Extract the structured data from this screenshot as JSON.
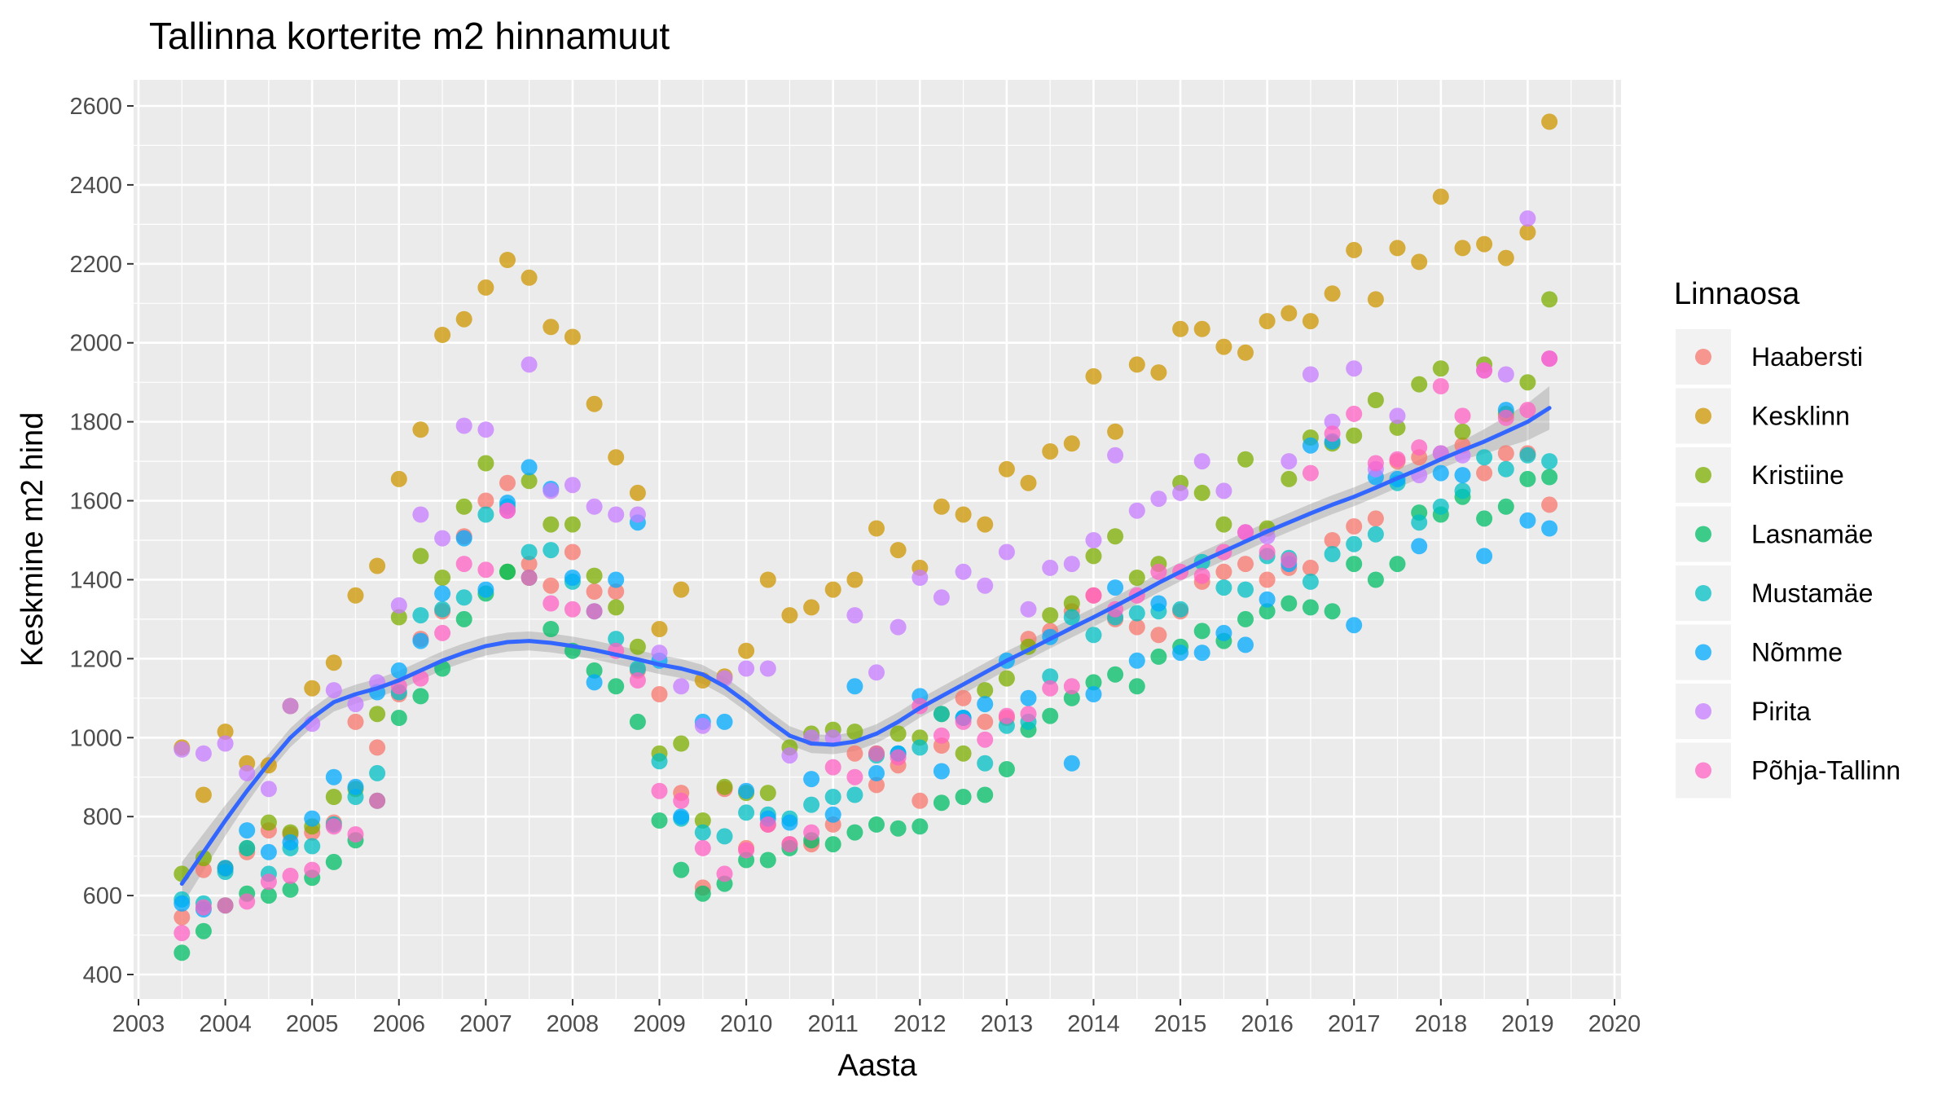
{
  "chart_data": {
    "type": "scatter",
    "title": "Tallinna korterite m2 hinnamuut",
    "xlabel": "Aasta",
    "ylabel": "Keskmine m2 hind",
    "xlim": [
      2003,
      2020
    ],
    "ylim": [
      400,
      2600
    ],
    "xticks": [
      "2003",
      "2004",
      "2005",
      "2006",
      "2007",
      "2008",
      "2009",
      "2010",
      "2011",
      "2012",
      "2013",
      "2014",
      "2015",
      "2016",
      "2017",
      "2018",
      "2019",
      "2020"
    ],
    "yticks": [
      "400",
      "600",
      "800",
      "1000",
      "1200",
      "1400",
      "1600",
      "1800",
      "2000",
      "2200",
      "2400",
      "2600"
    ],
    "grid": true,
    "legend": {
      "title": "Linnaosa",
      "position": "right"
    },
    "x": [
      2003.5,
      2003.75,
      2004.0,
      2004.25,
      2004.5,
      2004.75,
      2005.0,
      2005.25,
      2005.5,
      2005.75,
      2006.0,
      2006.25,
      2006.5,
      2006.75,
      2007.0,
      2007.25,
      2007.5,
      2007.75,
      2008.0,
      2008.25,
      2008.5,
      2008.75,
      2009.0,
      2009.25,
      2009.5,
      2009.75,
      2010.0,
      2010.25,
      2010.5,
      2010.75,
      2011.0,
      2011.25,
      2011.5,
      2011.75,
      2012.0,
      2012.25,
      2012.5,
      2012.75,
      2013.0,
      2013.25,
      2013.5,
      2013.75,
      2014.0,
      2014.25,
      2014.5,
      2014.75,
      2015.0,
      2015.25,
      2015.5,
      2015.75,
      2016.0,
      2016.25,
      2016.5,
      2016.75,
      2017.0,
      2017.25,
      2017.5,
      2017.75,
      2018.0,
      2018.25,
      2018.5,
      2018.75,
      2019.0,
      2019.25
    ],
    "series": [
      {
        "name": "Haabersti",
        "color": "#F8766D",
        "values": [
          545,
          665,
          668,
          710,
          765,
          755,
          760,
          785,
          1040,
          975,
          1110,
          1250,
          1320,
          1510,
          1600,
          1645,
          1440,
          1385,
          1470,
          1370,
          1370,
          1170,
          1110,
          860,
          620,
          870,
          720,
          780,
          730,
          730,
          780,
          960,
          880,
          930,
          840,
          980,
          1100,
          1040,
          1050,
          1250,
          1270,
          1320,
          1360,
          1300,
          1280,
          1260,
          1320,
          1395,
          1420,
          1440,
          1400,
          1430,
          1430,
          1500,
          1535,
          1555,
          1700,
          1710,
          1720,
          1740,
          1670,
          1720,
          1720,
          1590
        ]
      },
      {
        "name": "Kesklinn",
        "color": "#CD9600",
        "values": [
          975,
          855,
          1015,
          935,
          930,
          1080,
          1125,
          1190,
          1360,
          1435,
          1655,
          1780,
          2020,
          2060,
          2140,
          2210,
          2165,
          2040,
          2015,
          1845,
          1710,
          1620,
          1275,
          1375,
          1145,
          1155,
          1220,
          1400,
          1310,
          1330,
          1375,
          1400,
          1530,
          1475,
          1430,
          1585,
          1565,
          1540,
          1680,
          1645,
          1725,
          1745,
          1915,
          1775,
          1945,
          1925,
          2035,
          2035,
          1990,
          1975,
          2055,
          2075,
          2055,
          2125,
          2235,
          2110,
          2240,
          2205,
          2370,
          2240,
          2250,
          2215,
          2280,
          2560
        ]
      },
      {
        "name": "Kristiine",
        "color": "#7CAE00",
        "values": [
          655,
          695,
          670,
          720,
          785,
          760,
          775,
          850,
          870,
          1060,
          1305,
          1460,
          1405,
          1585,
          1695,
          1420,
          1650,
          1540,
          1540,
          1410,
          1330,
          1230,
          960,
          985,
          790,
          875,
          860,
          860,
          975,
          1010,
          1020,
          1015,
          960,
          1010,
          1000,
          1060,
          960,
          1120,
          1150,
          1230,
          1310,
          1340,
          1460,
          1510,
          1405,
          1440,
          1645,
          1620,
          1540,
          1705,
          1530,
          1655,
          1760,
          1745,
          1765,
          1855,
          1785,
          1895,
          1935,
          1775,
          1945,
          1820,
          1900,
          2110
        ]
      },
      {
        "name": "Lasnamäe",
        "color": "#00BE67",
        "values": [
          455,
          510,
          575,
          605,
          600,
          615,
          645,
          685,
          740,
          840,
          1050,
          1105,
          1175,
          1300,
          1365,
          1420,
          1405,
          1275,
          1220,
          1170,
          1130,
          1040,
          790,
          665,
          605,
          630,
          690,
          690,
          720,
          740,
          730,
          760,
          780,
          770,
          775,
          835,
          850,
          855,
          920,
          1020,
          1055,
          1100,
          1140,
          1160,
          1130,
          1205,
          1230,
          1270,
          1245,
          1300,
          1320,
          1340,
          1330,
          1320,
          1440,
          1400,
          1440,
          1570,
          1565,
          1610,
          1555,
          1585,
          1655,
          1660
        ]
      },
      {
        "name": "Mustamäe",
        "color": "#00BFC4",
        "values": [
          590,
          580,
          660,
          720,
          655,
          720,
          725,
          780,
          850,
          910,
          1115,
          1310,
          1325,
          1355,
          1565,
          1585,
          1470,
          1475,
          1395,
          1320,
          1250,
          1175,
          940,
          795,
          760,
          750,
          810,
          805,
          795,
          830,
          850,
          855,
          955,
          960,
          975,
          1060,
          1050,
          935,
          1030,
          1040,
          1155,
          1305,
          1260,
          1305,
          1315,
          1320,
          1325,
          1445,
          1380,
          1375,
          1460,
          1455,
          1395,
          1465,
          1490,
          1515,
          1645,
          1545,
          1585,
          1625,
          1710,
          1680,
          1715,
          1700
        ]
      },
      {
        "name": "Nõmme",
        "color": "#00A9FF",
        "values": [
          580,
          565,
          670,
          765,
          710,
          735,
          795,
          900,
          875,
          1115,
          1170,
          1245,
          1365,
          1505,
          1375,
          1595,
          1685,
          1630,
          1405,
          1140,
          1400,
          1545,
          1195,
          800,
          1040,
          1040,
          865,
          795,
          785,
          895,
          805,
          1130,
          910,
          960,
          1105,
          915,
          1050,
          1085,
          1195,
          1100,
          1255,
          935,
          1110,
          1380,
          1195,
          1340,
          1215,
          1215,
          1265,
          1235,
          1350,
          1440,
          1740,
          1750,
          1285,
          1660,
          1655,
          1485,
          1670,
          1665,
          1460,
          1830,
          1550,
          1530
        ]
      },
      {
        "name": "Pirita",
        "color": "#C77CFF",
        "values": [
          970,
          960,
          985,
          910,
          870,
          1080,
          1035,
          1120,
          1085,
          1140,
          1335,
          1565,
          1505,
          1790,
          1780,
          1575,
          1945,
          1625,
          1640,
          1585,
          1565,
          1565,
          1215,
          1130,
          1030,
          1150,
          1175,
          1175,
          955,
          1000,
          1000,
          1310,
          1165,
          1280,
          1405,
          1355,
          1420,
          1385,
          1470,
          1325,
          1430,
          1440,
          1500,
          1715,
          1575,
          1605,
          1620,
          1700,
          1625,
          1520,
          1510,
          1700,
          1920,
          1800,
          1935,
          1680,
          1815,
          1665,
          1720,
          1715,
          1930,
          1920,
          2315,
          1960
        ]
      },
      {
        "name": "Põhja-Tallinn",
        "color": "#FF61C3",
        "values": [
          505,
          570,
          575,
          585,
          635,
          650,
          665,
          775,
          755,
          840,
          1130,
          1150,
          1265,
          1440,
          1425,
          1575,
          1405,
          1340,
          1325,
          1320,
          1220,
          1145,
          865,
          840,
          720,
          655,
          715,
          780,
          730,
          760,
          925,
          900,
          960,
          950,
          1080,
          1005,
          1040,
          995,
          1055,
          1060,
          1125,
          1130,
          1360,
          1325,
          1360,
          1420,
          1420,
          1410,
          1470,
          1520,
          1470,
          1450,
          1670,
          1770,
          1820,
          1695,
          1705,
          1735,
          1890,
          1815,
          1930,
          1810,
          1830,
          1960
        ]
      },
      {
        "name": "",
        "type": "smooth",
        "color": "#3366FF",
        "values": [
          630,
          710,
          790,
          865,
          935,
          1000,
          1050,
          1090,
          1110,
          1125,
          1145,
          1170,
          1195,
          1215,
          1232,
          1242,
          1245,
          1240,
          1232,
          1222,
          1210,
          1198,
          1185,
          1175,
          1160,
          1130,
          1090,
          1045,
          1005,
          985,
          982,
          990,
          1010,
          1040,
          1075,
          1105,
          1135,
          1165,
          1195,
          1222,
          1250,
          1278,
          1305,
          1333,
          1362,
          1392,
          1420,
          1447,
          1472,
          1497,
          1522,
          1545,
          1568,
          1590,
          1610,
          1633,
          1657,
          1680,
          1705,
          1728,
          1750,
          1775,
          1800,
          1835
        ]
      }
    ]
  }
}
